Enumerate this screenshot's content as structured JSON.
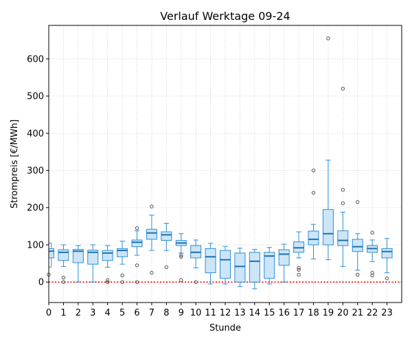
{
  "chart_data": {
    "type": "box",
    "title": "Verlauf Werktage 09-24",
    "xlabel": "Stunde",
    "ylabel": "Strompreis [€/MWh]",
    "xlim": [
      0,
      24
    ],
    "ylim": [
      -55,
      690
    ],
    "yticks": [
      0,
      100,
      200,
      300,
      400,
      500,
      600
    ],
    "categories": [
      "0",
      "1",
      "2",
      "3",
      "4",
      "5",
      "6",
      "7",
      "8",
      "9",
      "10",
      "11",
      "12",
      "13",
      "14",
      "15",
      "16",
      "17",
      "18",
      "19",
      "20",
      "21",
      "22",
      "23"
    ],
    "grid": true,
    "reference_line": {
      "y": 0,
      "color": "#ff0000",
      "style": "dotted"
    },
    "colors": {
      "box_fill": "#cce5f8",
      "box_edge": "#2a8dd4",
      "median": "#1a6fb0",
      "outlier": "#555555"
    },
    "boxes": [
      {
        "x": "0",
        "whislo": 40,
        "q1": 65,
        "med": 83,
        "q3": 90,
        "whishi": 105,
        "fliers": [
          20
        ]
      },
      {
        "x": "1",
        "whislo": 42,
        "q1": 58,
        "med": 80,
        "q3": 87,
        "whishi": 100,
        "fliers": [
          12,
          0
        ]
      },
      {
        "x": "2",
        "whislo": 0,
        "q1": 52,
        "med": 83,
        "q3": 88,
        "whishi": 98,
        "fliers": []
      },
      {
        "x": "3",
        "whislo": 0,
        "q1": 48,
        "med": 80,
        "q3": 86,
        "whishi": 100,
        "fliers": []
      },
      {
        "x": "4",
        "whislo": 40,
        "q1": 58,
        "med": 78,
        "q3": 85,
        "whishi": 98,
        "fliers": [
          5,
          0
        ]
      },
      {
        "x": "5",
        "whislo": 48,
        "q1": 68,
        "med": 85,
        "q3": 90,
        "whishi": 110,
        "fliers": [
          18,
          0
        ]
      },
      {
        "x": "6",
        "whislo": 72,
        "q1": 95,
        "med": 107,
        "q3": 113,
        "whishi": 138,
        "fliers": [
          145,
          45,
          0
        ]
      },
      {
        "x": "7",
        "whislo": 85,
        "q1": 115,
        "med": 132,
        "q3": 142,
        "whishi": 180,
        "fliers": [
          203,
          25
        ]
      },
      {
        "x": "8",
        "whislo": 85,
        "q1": 112,
        "med": 127,
        "q3": 135,
        "whishi": 158,
        "fliers": [
          40
        ]
      },
      {
        "x": "9",
        "whislo": 78,
        "q1": 98,
        "med": 105,
        "q3": 112,
        "whishi": 130,
        "fliers": [
          72,
          68,
          5
        ]
      },
      {
        "x": "10",
        "whislo": 38,
        "q1": 65,
        "med": 80,
        "q3": 98,
        "whishi": 113,
        "fliers": [
          0
        ]
      },
      {
        "x": "11",
        "whislo": -5,
        "q1": 25,
        "med": 68,
        "q3": 90,
        "whishi": 104,
        "fliers": []
      },
      {
        "x": "12",
        "whislo": -5,
        "q1": 10,
        "med": 60,
        "q3": 85,
        "whishi": 96,
        "fliers": []
      },
      {
        "x": "13",
        "whislo": -12,
        "q1": 0,
        "med": 42,
        "q3": 78,
        "whishi": 91,
        "fliers": []
      },
      {
        "x": "14",
        "whislo": -18,
        "q1": 0,
        "med": 56,
        "q3": 80,
        "whishi": 88,
        "fliers": []
      },
      {
        "x": "15",
        "whislo": -5,
        "q1": 10,
        "med": 70,
        "q3": 80,
        "whishi": 93,
        "fliers": []
      },
      {
        "x": "16",
        "whislo": 0,
        "q1": 45,
        "med": 75,
        "q3": 87,
        "whishi": 102,
        "fliers": []
      },
      {
        "x": "17",
        "whislo": 65,
        "q1": 80,
        "med": 92,
        "q3": 108,
        "whishi": 135,
        "fliers": [
          38,
          33,
          20
        ]
      },
      {
        "x": "18",
        "whislo": 62,
        "q1": 100,
        "med": 115,
        "q3": 137,
        "whishi": 155,
        "fliers": [
          300,
          240
        ]
      },
      {
        "x": "19",
        "whislo": 60,
        "q1": 100,
        "med": 130,
        "q3": 195,
        "whishi": 328,
        "fliers": [
          655
        ]
      },
      {
        "x": "20",
        "whislo": 42,
        "q1": 98,
        "med": 112,
        "q3": 138,
        "whishi": 188,
        "fliers": [
          520,
          248,
          212
        ]
      },
      {
        "x": "21",
        "whislo": 32,
        "q1": 82,
        "med": 95,
        "q3": 115,
        "whishi": 130,
        "fliers": [
          215,
          20
        ]
      },
      {
        "x": "22",
        "whislo": 55,
        "q1": 80,
        "med": 90,
        "q3": 98,
        "whishi": 113,
        "fliers": [
          133,
          25,
          18
        ]
      },
      {
        "x": "23",
        "whislo": 25,
        "q1": 65,
        "med": 82,
        "q3": 90,
        "whishi": 117,
        "fliers": [
          10
        ]
      }
    ]
  }
}
